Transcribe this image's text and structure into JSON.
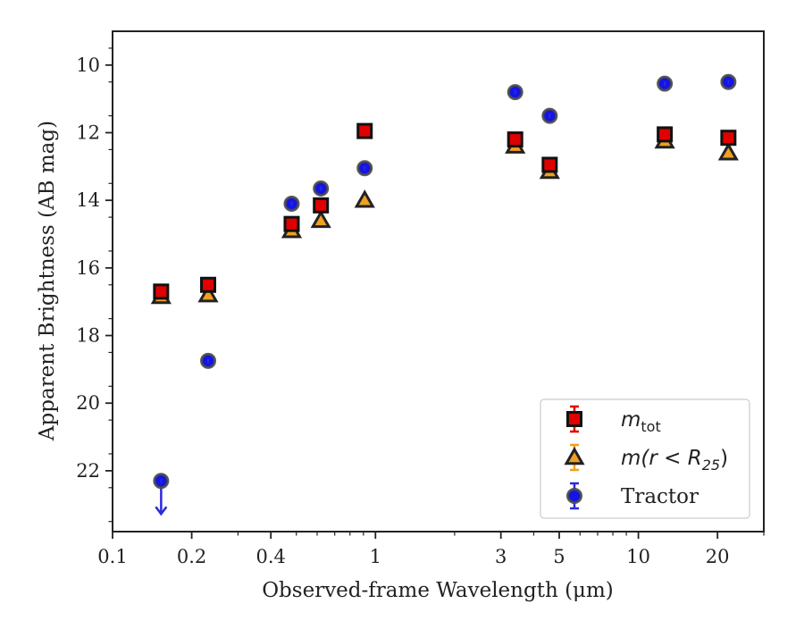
{
  "chart_data": {
    "type": "scatter",
    "xlabel": "Observed-frame Wavelength (μm)",
    "ylabel": "Apparent Brightness (AB mag)",
    "xscale": "log",
    "y_inverted": true,
    "xlim": [
      0.1,
      30
    ],
    "ylim": [
      23.8,
      9.0
    ],
    "grid": false,
    "legend_position": "bottom-right",
    "x_ticks": [
      {
        "value": 0.1,
        "label": "0.1"
      },
      {
        "value": 0.2,
        "label": "0.2"
      },
      {
        "value": 0.4,
        "label": "0.4"
      },
      {
        "value": 1,
        "label": "1"
      },
      {
        "value": 3,
        "label": "3"
      },
      {
        "value": 5,
        "label": "5"
      },
      {
        "value": 10,
        "label": "10"
      },
      {
        "value": 20,
        "label": "20"
      }
    ],
    "x_minor_ticks": [
      0.3,
      0.5,
      0.6,
      0.7,
      0.8,
      0.9,
      2,
      4,
      6,
      7,
      8,
      9,
      30
    ],
    "y_ticks": [
      {
        "value": 10,
        "label": "10"
      },
      {
        "value": 12,
        "label": "12"
      },
      {
        "value": 14,
        "label": "14"
      },
      {
        "value": 16,
        "label": "16"
      },
      {
        "value": 18,
        "label": "18"
      },
      {
        "value": 20,
        "label": "20"
      },
      {
        "value": 22,
        "label": "22"
      }
    ],
    "series": [
      {
        "name": "Tractor",
        "legend_main": "Tractor",
        "marker": "circle",
        "fill": "#1414e6",
        "edge": "#4a4a4a",
        "errorbar_color": "#2a2ae0",
        "points": [
          {
            "x": 0.153,
            "y": 22.3,
            "upper_limit": true
          },
          {
            "x": 0.231,
            "y": 18.75
          },
          {
            "x": 0.48,
            "y": 14.1
          },
          {
            "x": 0.62,
            "y": 13.65
          },
          {
            "x": 0.91,
            "y": 13.05
          },
          {
            "x": 3.4,
            "y": 10.8
          },
          {
            "x": 4.6,
            "y": 11.5
          },
          {
            "x": 12.6,
            "y": 10.55
          },
          {
            "x": 22.0,
            "y": 10.5
          }
        ]
      },
      {
        "name": "m(r < R25)",
        "legend_main": "m(r < R",
        "legend_sub": "25",
        "legend_tail": ")",
        "marker": "triangle",
        "fill": "#f0a020",
        "edge": "#222222",
        "errorbar_color": "#f0a020",
        "points": [
          {
            "x": 0.153,
            "y": 16.85
          },
          {
            "x": 0.231,
            "y": 16.8
          },
          {
            "x": 0.48,
            "y": 14.9
          },
          {
            "x": 0.62,
            "y": 14.6
          },
          {
            "x": 0.91,
            "y": 14.0
          },
          {
            "x": 3.4,
            "y": 12.4
          },
          {
            "x": 4.6,
            "y": 13.15
          },
          {
            "x": 12.6,
            "y": 12.25
          },
          {
            "x": 22.0,
            "y": 12.6
          }
        ]
      },
      {
        "name": "m_tot",
        "legend_main": "m",
        "legend_sub": "tot",
        "marker": "square",
        "fill": "#e00000",
        "edge": "#111111",
        "errorbar_color": "#e00000",
        "points": [
          {
            "x": 0.153,
            "y": 16.7
          },
          {
            "x": 0.231,
            "y": 16.5
          },
          {
            "x": 0.48,
            "y": 14.7
          },
          {
            "x": 0.62,
            "y": 14.15
          },
          {
            "x": 0.91,
            "y": 11.95
          },
          {
            "x": 3.4,
            "y": 12.2
          },
          {
            "x": 4.6,
            "y": 12.95
          },
          {
            "x": 12.6,
            "y": 12.05
          },
          {
            "x": 22.0,
            "y": 12.15
          }
        ]
      }
    ],
    "legend_order": [
      "m_tot",
      "m(r < R25)",
      "Tractor"
    ]
  }
}
